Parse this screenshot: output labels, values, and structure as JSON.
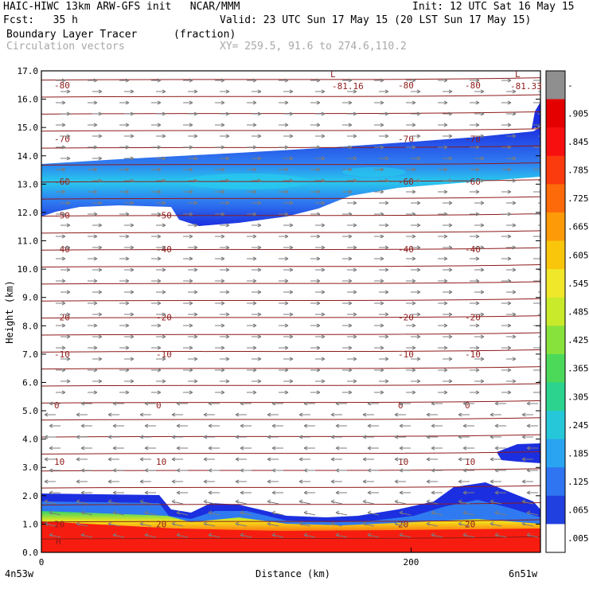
{
  "header": {
    "line1_left": "HAIC-HIWC 13km ARW-GFS init   NCAR/MMM",
    "line1_right": "Init: 12 UTC Sat 16 May 15",
    "line2_left": "Fcst:   35 h",
    "line2_right": "Valid: 23 UTC Sun 17 May 15 (20 LST Sun 17 May 15)",
    "line3_left": "Boundary Layer Tracer",
    "line3_unit": "(fraction)",
    "line4_left": "Circulation vectors",
    "line4_xy": "XY= 259.5, 91.6 to 274.6,110.2"
  },
  "chart_data": {
    "type": "heatmap",
    "title": "Boundary Layer Tracer",
    "units": "(fraction)",
    "xlabel": "Distance (km)",
    "ylabel": "Height (km)",
    "xlim": [
      0,
      270
    ],
    "ylim": [
      0.0,
      17.0
    ],
    "x_ticks": [
      0,
      200
    ],
    "y_ticks": [
      "0.0",
      "1.0",
      "2.0",
      "3.0",
      "4.0",
      "5.0",
      "6.0",
      "7.0",
      "8.0",
      "9.0",
      "10.0",
      "11.0",
      "12.0",
      "13.0",
      "14.0",
      "15.0",
      "16.0",
      "17.0"
    ],
    "x_endpoints": {
      "left": "4n53w",
      "right": "6n51w"
    },
    "colorbar_labels": [
      "-",
      ".905",
      ".845",
      ".785",
      ".725",
      ".665",
      ".605",
      ".545",
      ".485",
      ".425",
      ".365",
      ".305",
      ".245",
      ".185",
      ".125",
      ".065",
      ".005"
    ],
    "colors": {
      "upper_band_dark": "#1c2fe0",
      "upper_band_mid": "#2f7af0",
      "upper_band_light": "#27c9ee",
      "boundary_red": "#f61d10",
      "contour": "#8e1a1a",
      "arrow": "#7c7c7c"
    },
    "temperature_contours": [
      {
        "label": "-80",
        "height": 16.5
      },
      {
        "label": "-70",
        "height": 14.6
      },
      {
        "label": "-60",
        "height": 13.1
      },
      {
        "label": "-50",
        "height": 11.9
      },
      {
        "label": "-40",
        "height": 10.7
      },
      {
        "label": "-20",
        "height": 8.3
      },
      {
        "label": "-10",
        "height": 7.0
      },
      {
        "label": "0",
        "height": 5.2
      },
      {
        "label": "10",
        "height": 3.2
      },
      {
        "label": "20",
        "height": 1.0
      }
    ],
    "annotations": [
      "-81.16",
      "-81.33",
      "L",
      "L",
      "H"
    ]
  }
}
